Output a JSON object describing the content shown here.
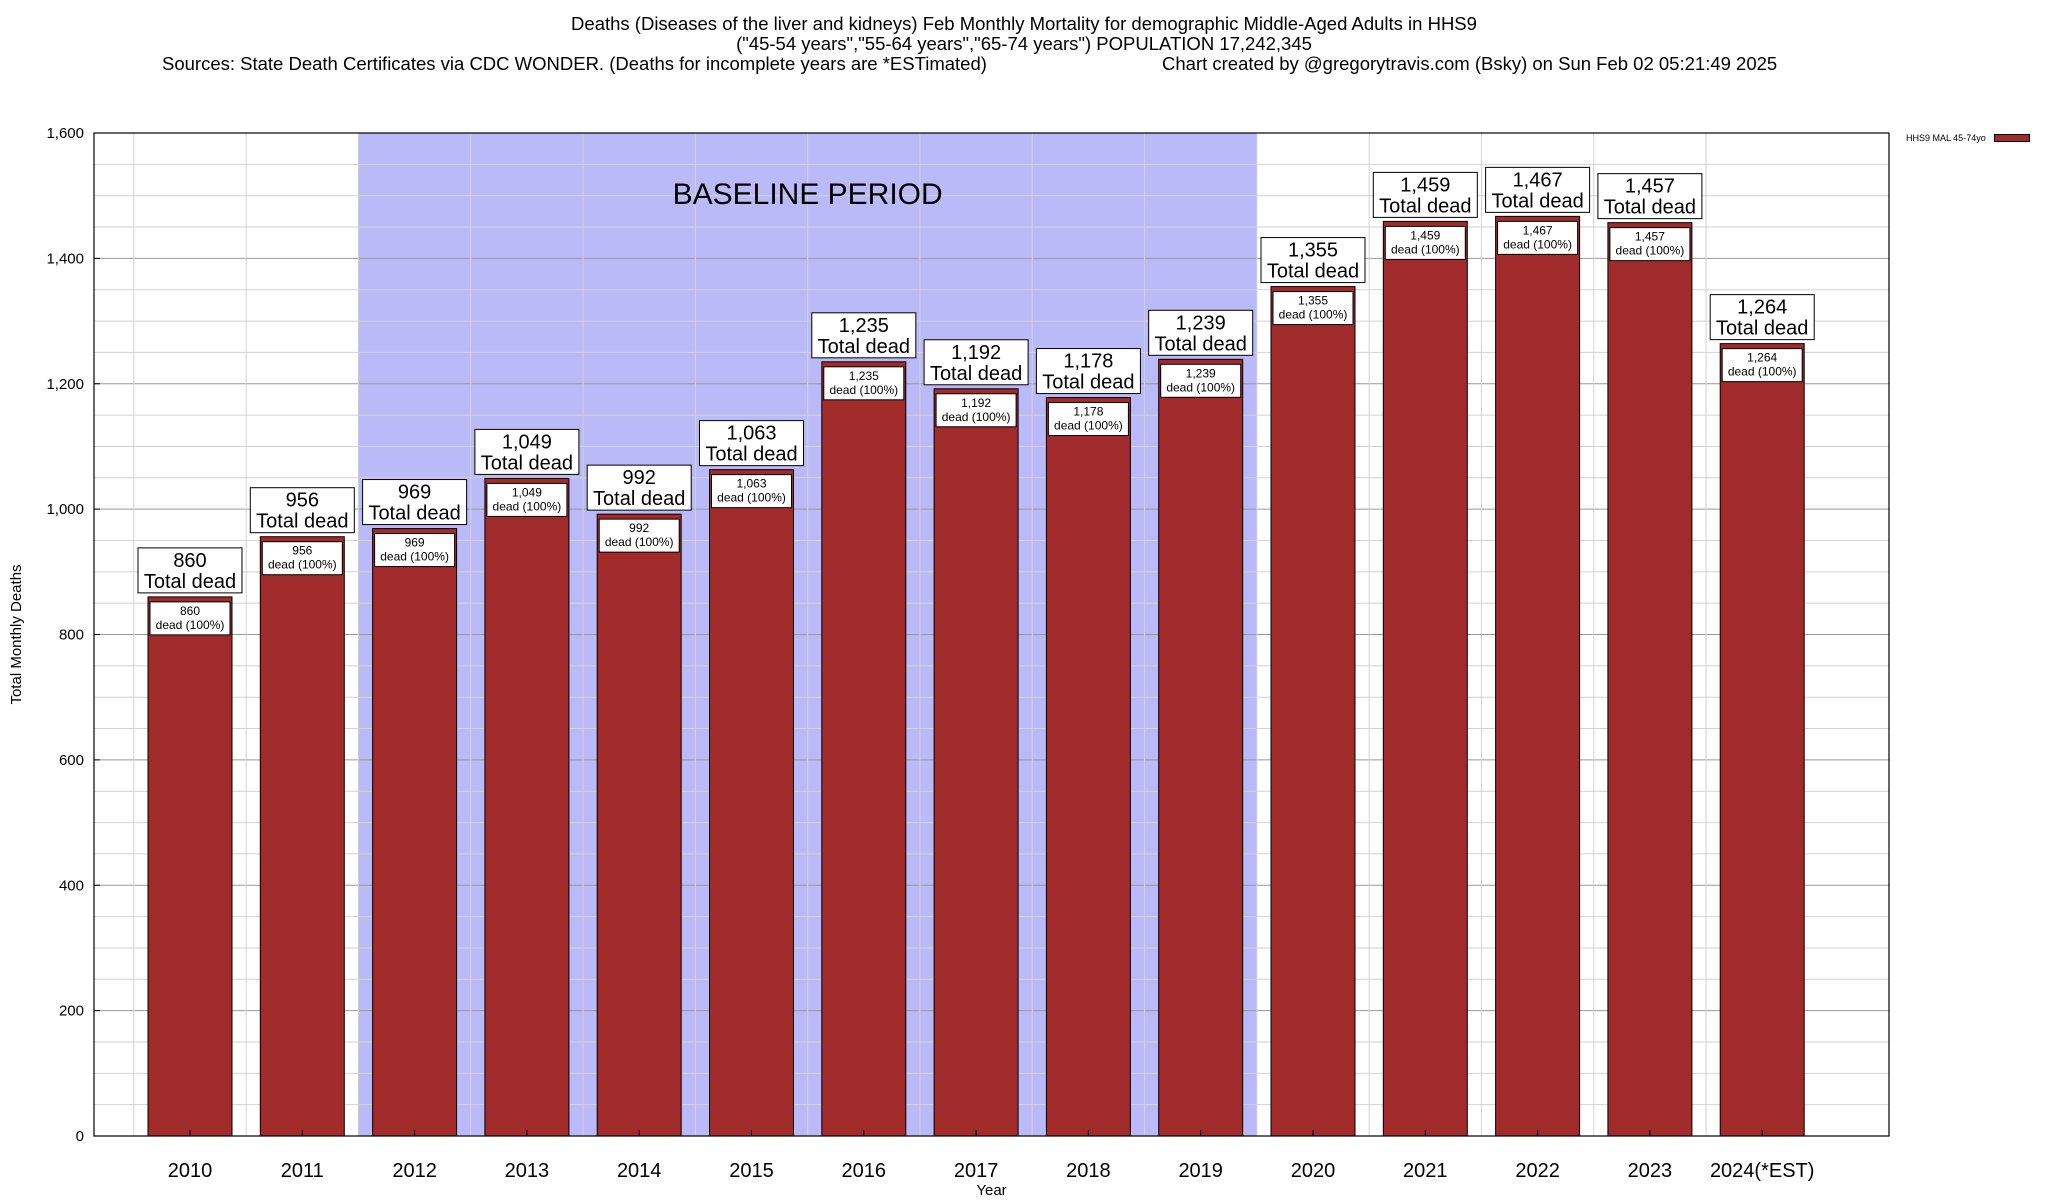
{
  "header": {
    "title_line1": "Deaths (Diseases of the liver and kidneys) Feb Monthly Mortality for demographic Middle-Aged Adults in HHS9",
    "title_line2": "(\"45-54 years\",\"55-64 years\",\"65-74 years\") POPULATION 17,242,345",
    "sources": "Sources: State Death Certificates via CDC WONDER. (Deaths for incomplete years are *ESTimated)",
    "credit": "Chart created by @gregorytravis.com (Bsky) on Sun Feb 02 05:21:49 2025"
  },
  "legend": {
    "label": "HHS9 MAL 45-74yo"
  },
  "colors": {
    "bar": "#a12a2a",
    "baseline_region": "#babaf8",
    "grid_major": "#9a9a9a",
    "grid_minor": "#d2d2d2"
  },
  "chart_data": {
    "type": "bar",
    "xlabel": "Year",
    "ylabel": "Total Monthly Deaths",
    "ylim": [
      0,
      1600
    ],
    "yticks": [
      0,
      200,
      400,
      600,
      800,
      1000,
      1200,
      1400,
      1600
    ],
    "ytick_labels": [
      "0",
      "200",
      "400",
      "600",
      "800",
      "1,000",
      "1,200",
      "1,400",
      "1,600"
    ],
    "grid": true,
    "legend_position": "top-right",
    "categories": [
      "2010",
      "2011",
      "2012",
      "2013",
      "2014",
      "2015",
      "2016",
      "2017",
      "2018",
      "2019",
      "2020",
      "2021",
      "2022",
      "2023",
      "2024(*EST)"
    ],
    "series": [
      {
        "name": "HHS9 MAL 45-74yo",
        "values": [
          860,
          956,
          969,
          1049,
          992,
          1063,
          1235,
          1192,
          1178,
          1239,
          1355,
          1459,
          1467,
          1457,
          1264
        ]
      }
    ],
    "top_labels": [
      "860",
      "956",
      "969",
      "1,049",
      "992",
      "1,063",
      "1,235",
      "1,192",
      "1,178",
      "1,239",
      "1,355",
      "1,459",
      "1,467",
      "1,457",
      "1,264"
    ],
    "top_label_suffix": "Total dead",
    "inner_labels": [
      "860",
      "956",
      "969",
      "1,049",
      "992",
      "1,063",
      "1,235",
      "1,192",
      "1,178",
      "1,239",
      "1,355",
      "1,459",
      "1,467",
      "1,457",
      "1,264"
    ],
    "inner_label_suffix": "dead (100%)",
    "baseline_region": {
      "label": "BASELINE PERIOD",
      "start": "2012",
      "end": "2019"
    }
  }
}
